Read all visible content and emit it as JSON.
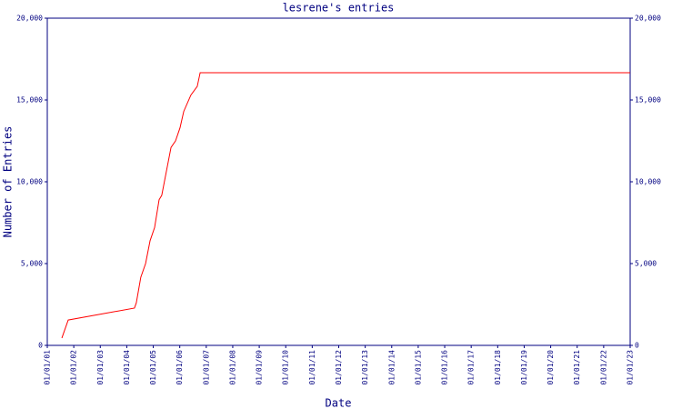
{
  "chart_data": {
    "type": "line",
    "title": "lesrene's entries",
    "xlabel": "Date",
    "ylabel": "Number of Entries",
    "x": [
      1.55,
      1.79,
      4.29,
      4.36,
      4.53,
      4.71,
      4.88,
      5.05,
      5.22,
      5.32,
      5.67,
      5.84,
      6.01,
      6.15,
      6.42,
      6.66,
      6.77,
      23
    ],
    "series": [
      {
        "color": "#ff0000",
        "values": [
          450,
          1550,
          2280,
          2600,
          4170,
          5000,
          6400,
          7200,
          8900,
          9170,
          12100,
          12500,
          13300,
          14300,
          15300,
          15830,
          16670,
          16670
        ]
      }
    ],
    "xlim": [
      1,
      23
    ],
    "xticks": [
      {
        "value": 1,
        "label": "01/01/01"
      },
      {
        "value": 2,
        "label": "01/01/02"
      },
      {
        "value": 3,
        "label": "01/01/03"
      },
      {
        "value": 4,
        "label": "01/01/04"
      },
      {
        "value": 5,
        "label": "01/01/05"
      },
      {
        "value": 6,
        "label": "01/01/06"
      },
      {
        "value": 7,
        "label": "01/01/07"
      },
      {
        "value": 8,
        "label": "01/01/08"
      },
      {
        "value": 9,
        "label": "01/01/09"
      },
      {
        "value": 10,
        "label": "01/01/10"
      },
      {
        "value": 11,
        "label": "01/01/11"
      },
      {
        "value": 12,
        "label": "01/01/12"
      },
      {
        "value": 13,
        "label": "01/01/13"
      },
      {
        "value": 14,
        "label": "01/01/14"
      },
      {
        "value": 15,
        "label": "01/01/15"
      },
      {
        "value": 16,
        "label": "01/01/16"
      },
      {
        "value": 17,
        "label": "01/01/17"
      },
      {
        "value": 18,
        "label": "01/01/18"
      },
      {
        "value": 19,
        "label": "01/01/19"
      },
      {
        "value": 20,
        "label": "01/01/20"
      },
      {
        "value": 21,
        "label": "01/01/21"
      },
      {
        "value": 22,
        "label": "01/01/22"
      },
      {
        "value": 23,
        "label": "01/01/23"
      }
    ],
    "ylim": [
      0,
      20000
    ],
    "yticks": [
      0,
      {
        "value": 5000,
        "label": "5,000"
      },
      {
        "value": 10000,
        "label": "10,000"
      },
      {
        "value": 15000,
        "label": "15,000"
      },
      {
        "value": 20000,
        "label": "20,000"
      }
    ],
    "y2lim": [
      0,
      20000
    ],
    "y2ticks": [
      0,
      {
        "value": 5000,
        "label": "5,000"
      },
      {
        "value": 10000,
        "label": "10,000"
      },
      {
        "value": 15000,
        "label": "15,000"
      },
      {
        "value": 20000,
        "label": "20,000"
      }
    ],
    "axis_color": "#000080"
  }
}
